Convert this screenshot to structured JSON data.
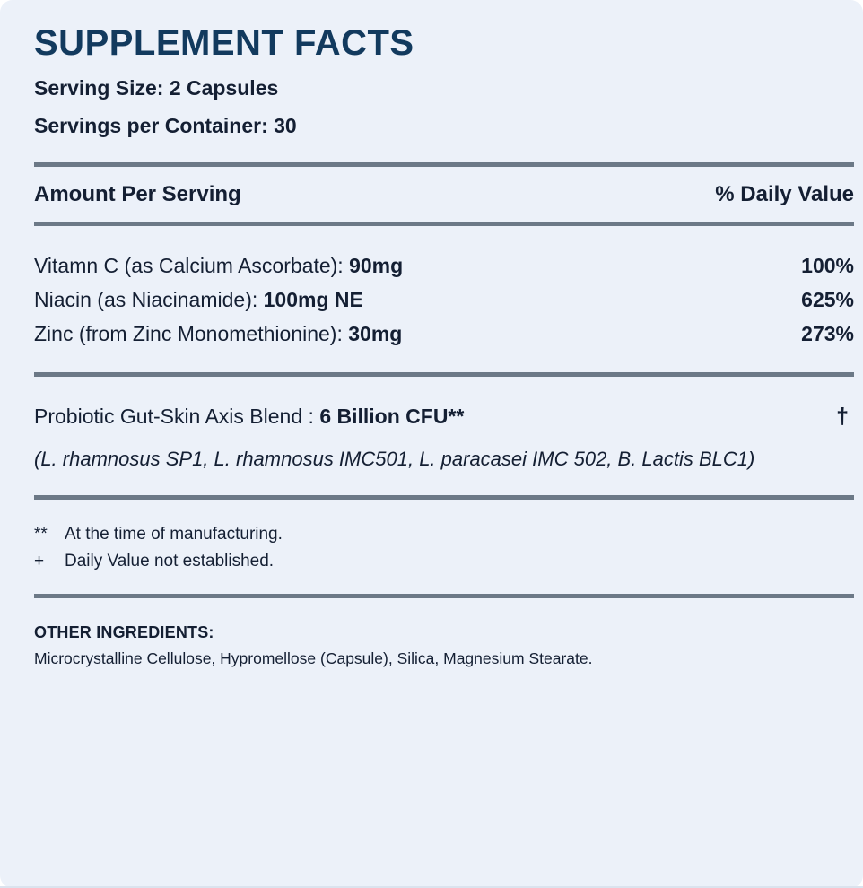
{
  "colors": {
    "background": "#ECF1F9",
    "title_navy": "#123A5E",
    "text_navy": "#141F33",
    "divider_gray": "#6C7987"
  },
  "header": {
    "title": "SUPPLEMENT FACTS",
    "serving_size": "Serving Size: 2 Capsules",
    "servings_per_container": "Servings per Container: 30"
  },
  "table": {
    "columns": {
      "left": "Amount Per Serving",
      "right": "% Daily Value"
    },
    "nutrients": [
      {
        "name": "Vitamn C (as Calcium Ascorbate): ",
        "amount": "90mg",
        "daily_value": "100%"
      },
      {
        "name": "Niacin (as Niacinamide): ",
        "amount": "100mg NE",
        "daily_value": "625%"
      },
      {
        "name": "Zinc (from Zinc Monomethionine): ",
        "amount": "30mg",
        "daily_value": "273%"
      }
    ],
    "blend": {
      "name": "Probiotic Gut-Skin Axis Blend : ",
      "amount": "6 Billion CFU**",
      "daily_value": "†",
      "strains": "(L. rhamnosus SP1, L. rhamnosus IMC501, L. paracasei IMC 502, B. Lactis BLC1)"
    }
  },
  "footnotes": [
    {
      "symbol": "**",
      "text": "At the time of manufacturing."
    },
    {
      "symbol": "+",
      "text": "Daily Value not established."
    }
  ],
  "other_ingredients": {
    "label": "OTHER INGREDIENTS:",
    "text": "Microcrystalline Cellulose, Hypromellose (Capsule), Silica, Magnesium Stearate."
  }
}
